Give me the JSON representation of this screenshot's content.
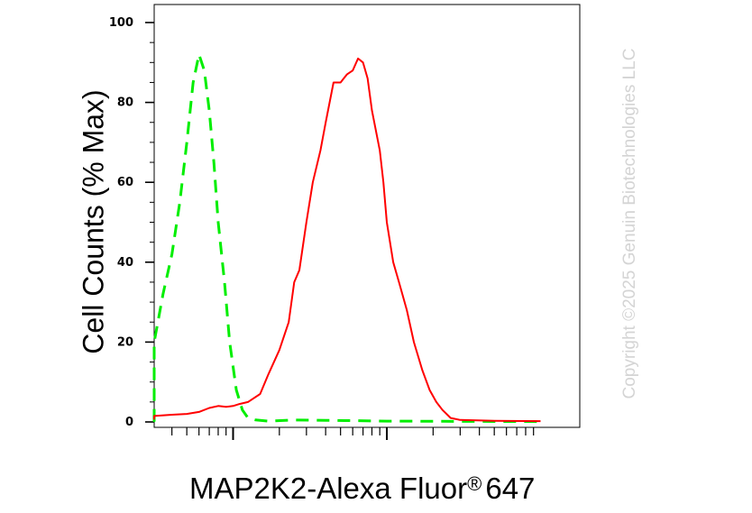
{
  "chart_data": {
    "type": "line",
    "title": "",
    "ylabel": "Cell Counts (% Max)",
    "xlabel": "MAP2K2-Alexa Fluor",
    "xlabel_suffix": "647",
    "xlabel_mark": "®",
    "watermark": "Copyright ©2025 Genuin Biotechnologies LLC",
    "x_scale": "log",
    "xlim": [
      10,
      10000
    ],
    "ylim": [
      0,
      104
    ],
    "yticks": [
      "0",
      "20",
      "40",
      "60",
      "80",
      "100"
    ],
    "grid": false,
    "series": [
      {
        "color": "#00ee00",
        "dash": true,
        "points": [
          [
            10,
            0.5
          ],
          [
            13,
            0.3
          ],
          [
            15,
            0.5
          ],
          [
            18,
            1.5
          ],
          [
            20,
            3
          ],
          [
            25,
            9
          ],
          [
            30,
            20
          ],
          [
            35,
            32
          ],
          [
            40,
            42
          ],
          [
            45,
            55
          ],
          [
            50,
            70
          ],
          [
            55,
            85
          ],
          [
            60,
            92
          ],
          [
            65,
            88
          ],
          [
            70,
            78
          ],
          [
            75,
            65
          ],
          [
            80,
            50
          ],
          [
            88,
            35
          ],
          [
            95,
            20
          ],
          [
            105,
            8
          ],
          [
            115,
            3
          ],
          [
            125,
            1
          ],
          [
            140,
            0.5
          ],
          [
            170,
            0.2
          ],
          [
            250,
            0.5
          ],
          [
            400,
            0.4
          ],
          [
            1000,
            0.2
          ],
          [
            10000,
            0.1
          ]
        ]
      },
      {
        "color": "#ff0000",
        "dash": false,
        "points": [
          [
            10,
            1
          ],
          [
            15,
            0.8
          ],
          [
            20,
            1
          ],
          [
            30,
            1.5
          ],
          [
            40,
            1.8
          ],
          [
            50,
            2
          ],
          [
            60,
            2.5
          ],
          [
            70,
            3.5
          ],
          [
            80,
            4
          ],
          [
            90,
            3.8
          ],
          [
            100,
            4
          ],
          [
            110,
            4.5
          ],
          [
            125,
            5
          ],
          [
            150,
            7
          ],
          [
            170,
            12
          ],
          [
            200,
            18
          ],
          [
            230,
            25
          ],
          [
            250,
            35
          ],
          [
            270,
            38
          ],
          [
            300,
            50
          ],
          [
            330,
            60
          ],
          [
            370,
            68
          ],
          [
            400,
            75
          ],
          [
            450,
            85
          ],
          [
            500,
            85
          ],
          [
            550,
            87
          ],
          [
            600,
            88
          ],
          [
            650,
            91
          ],
          [
            700,
            90
          ],
          [
            750,
            86
          ],
          [
            800,
            78
          ],
          [
            900,
            68
          ],
          [
            950,
            60
          ],
          [
            1000,
            50
          ],
          [
            1100,
            40
          ],
          [
            1200,
            35
          ],
          [
            1350,
            28
          ],
          [
            1500,
            20
          ],
          [
            1700,
            13
          ],
          [
            1900,
            8
          ],
          [
            2100,
            5
          ],
          [
            2300,
            3
          ],
          [
            2600,
            1
          ],
          [
            3000,
            0.5
          ],
          [
            5000,
            0.3
          ],
          [
            10000,
            0.2
          ]
        ]
      }
    ]
  }
}
